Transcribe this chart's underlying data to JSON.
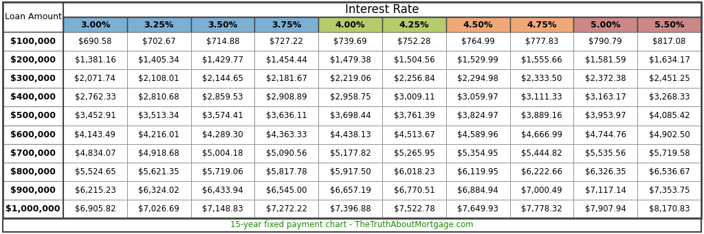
{
  "title": "Interest Rate",
  "footer": "15-year fixed payment chart - TheTruthAboutMortgage.com",
  "footer_color": "#1a8a00",
  "col_header": [
    "3.00%",
    "3.25%",
    "3.50%",
    "3.75%",
    "4.00%",
    "4.25%",
    "4.50%",
    "4.75%",
    "5.00%",
    "5.50%"
  ],
  "col_header_colors": [
    "#7bafd4",
    "#7bafd4",
    "#7bafd4",
    "#7bafd4",
    "#b5cc6a",
    "#b5cc6a",
    "#f0a878",
    "#f0a878",
    "#cc8888",
    "#cc8888"
  ],
  "row_header": [
    "$100,000",
    "$200,000",
    "$300,000",
    "$400,000",
    "$500,000",
    "$600,000",
    "$700,000",
    "$800,000",
    "$900,000",
    "$1,000,000"
  ],
  "data": [
    [
      "$690.58",
      "$702.67",
      "$714.88",
      "$727.22",
      "$739.69",
      "$752.28",
      "$764.99",
      "$777.83",
      "$790.79",
      "$817.08"
    ],
    [
      "$1,381.16",
      "$1,405.34",
      "$1,429.77",
      "$1,454.44",
      "$1,479.38",
      "$1,504.56",
      "$1,529.99",
      "$1,555.66",
      "$1,581.59",
      "$1,634.17"
    ],
    [
      "$2,071.74",
      "$2,108.01",
      "$2,144.65",
      "$2,181.67",
      "$2,219.06",
      "$2,256.84",
      "$2,294.98",
      "$2,333.50",
      "$2,372.38",
      "$2,451.25"
    ],
    [
      "$2,762.33",
      "$2,810.68",
      "$2,859.53",
      "$2,908.89",
      "$2,958.75",
      "$3,009.11",
      "$3,059.97",
      "$3,111.33",
      "$3,163.17",
      "$3,268.33"
    ],
    [
      "$3,452.91",
      "$3,513.34",
      "$3,574.41",
      "$3,636.11",
      "$3,698.44",
      "$3,761.39",
      "$3,824.97",
      "$3,889.16",
      "$3,953.97",
      "$4,085.42"
    ],
    [
      "$4,143.49",
      "$4,216.01",
      "$4,289.30",
      "$4,363.33",
      "$4,438.13",
      "$4,513.67",
      "$4,589.96",
      "$4,666.99",
      "$4,744.76",
      "$4,902.50"
    ],
    [
      "$4,834.07",
      "$4,918.68",
      "$5,004.18",
      "$5,090.56",
      "$5,177.82",
      "$5,265.95",
      "$5,354.95",
      "$5,444.82",
      "$5,535.56",
      "$5,719.58"
    ],
    [
      "$5,524.65",
      "$5,621.35",
      "$5,719.06",
      "$5,817.78",
      "$5,917.50",
      "$6,018.23",
      "$6,119.95",
      "$6,222.66",
      "$6,326.35",
      "$6,536.67"
    ],
    [
      "$6,215.23",
      "$6,324.02",
      "$6,433.94",
      "$6,545.00",
      "$6,657.19",
      "$6,770.51",
      "$6,884.94",
      "$7,000.49",
      "$7,117.14",
      "$7,353.75"
    ],
    [
      "$6,905.82",
      "$7,026.69",
      "$7,148.83",
      "$7,272.22",
      "$7,396.88",
      "$7,522.78",
      "$7,649.93",
      "$7,778.32",
      "$7,907.94",
      "$8,170.83"
    ]
  ],
  "title_fontsize": 12,
  "header_fontsize": 9,
  "cell_fontsize": 8.5,
  "row_header_fontsize": 9,
  "footer_fontsize": 8.5,
  "border_color": "#444444",
  "grid_color": "#888888",
  "bg_color": "#ffffff"
}
